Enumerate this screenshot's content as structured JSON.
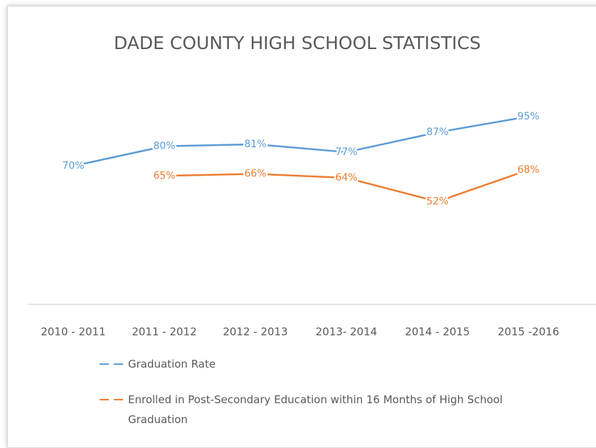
{
  "chart_data": {
    "type": "line",
    "title": "DADE COUNTY HIGH SCHOOL STATISTICS",
    "categories": [
      "2010 - 2011",
      "2011 - 2012",
      "2012 - 2013",
      "2013- 2014",
      "2014 - 2015",
      "2015 -2016"
    ],
    "series": [
      {
        "name": "Graduation Rate",
        "color": "#5b9bd5",
        "values": [
          70,
          80,
          81,
          77,
          87,
          95
        ],
        "value_labels": [
          "70%",
          "80%",
          "81%",
          "77%",
          "87%",
          "95%"
        ]
      },
      {
        "name": "Enrolled in Post-Secondary Education within 16 Months of High School Graduation",
        "color": "#ed7d31",
        "values": [
          null,
          65,
          66,
          64,
          52,
          68
        ],
        "value_labels": [
          null,
          "65%",
          "66%",
          "64%",
          "52%",
          "68%"
        ]
      }
    ],
    "ylim": [
      0,
      100
    ],
    "legend": "bottom"
  }
}
